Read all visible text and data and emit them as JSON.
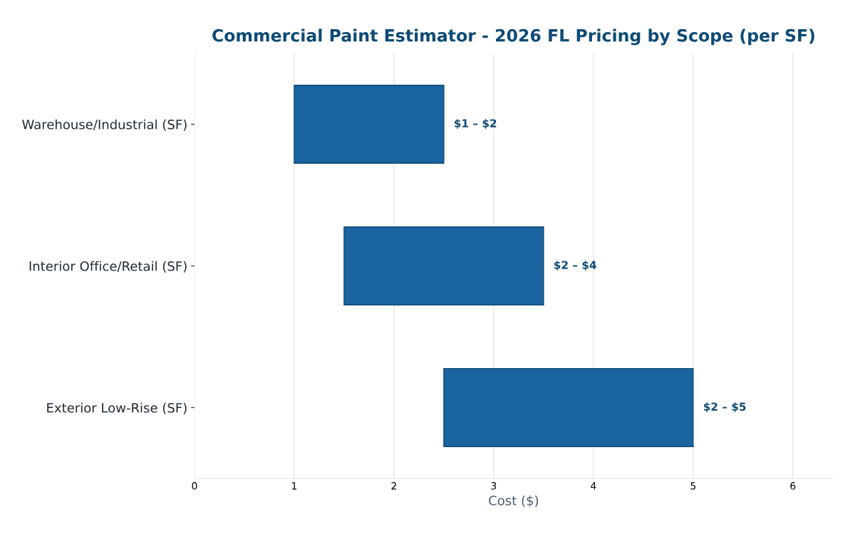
{
  "chart_data": {
    "type": "bar",
    "orientation": "horizontal",
    "title": "Commercial Paint Estimator - 2026 FL Pricing by Scope (per SF)",
    "xlabel": "Cost ($)",
    "categories": [
      "Warehouse/Industrial (SF)",
      "Interior Office/Retail (SF)",
      "Exterior Low-Rise (SF)"
    ],
    "base": [
      1,
      1.5,
      2.5
    ],
    "values": [
      1.5,
      2,
      2.5
    ],
    "value_labels": [
      "$1 – $2",
      "$2 – $4",
      "$2 – $5"
    ],
    "color": "#1a64a0",
    "xlim": [
      0,
      6.4
    ],
    "xticks": [
      0,
      1,
      2,
      3,
      4,
      5,
      6
    ],
    "grid": "x",
    "legend": false
  }
}
